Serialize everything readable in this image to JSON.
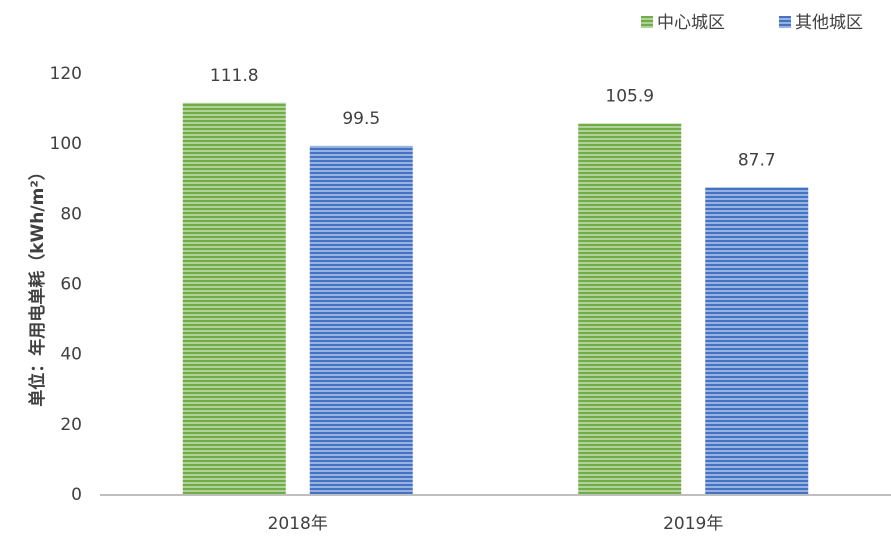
{
  "chart_data": {
    "type": "bar",
    "ylabel": "单位：年用电单耗（kWh/m²）",
    "categories": [
      "2018年",
      "2019年"
    ],
    "series": [
      {
        "name": "中心城区",
        "color": "#70ad47",
        "values": [
          111.8,
          105.9
        ]
      },
      {
        "name": "其他城区",
        "color": "#4472c4",
        "values": [
          99.5,
          87.7
        ]
      }
    ],
    "ylim": [
      0,
      120
    ],
    "yticks": [
      0,
      20,
      40,
      60,
      80,
      100,
      120
    ],
    "grid": false,
    "legend": "top-right"
  }
}
